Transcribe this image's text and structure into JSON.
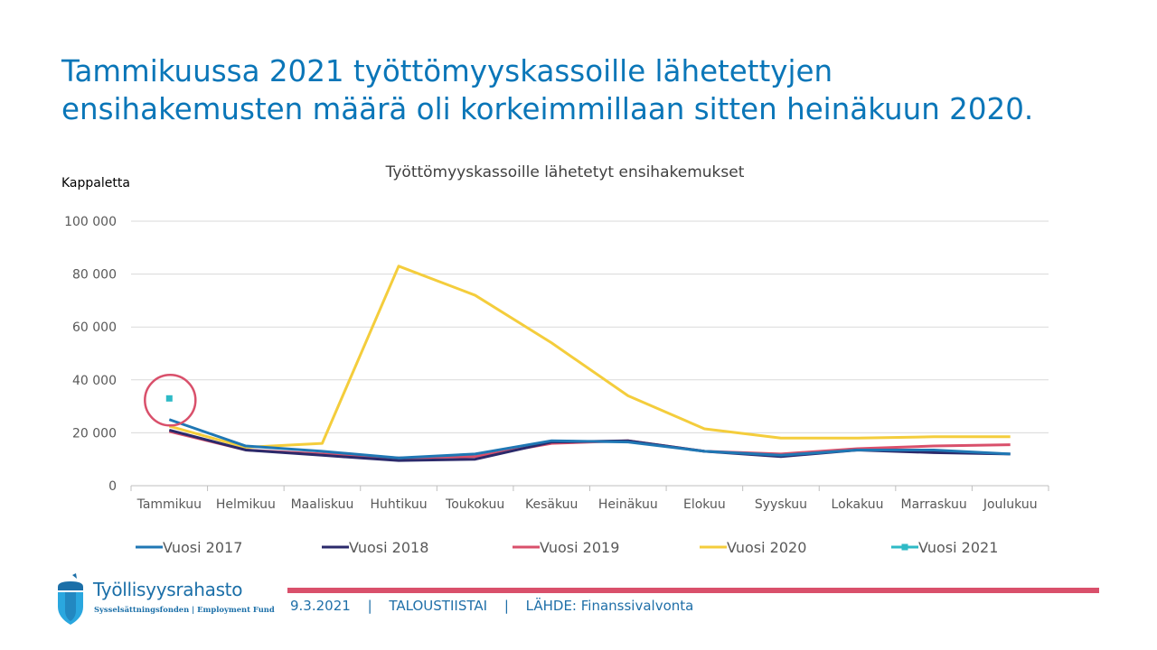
{
  "title": {
    "line1": "Tammikuussa 2021 työttömyyskassoille lähetettyjen",
    "line2": "ensihakemusten määrä oli korkeimmillaan sitten heinäkuun 2020."
  },
  "chart_data": {
    "type": "line",
    "title": "Työttömyyskassoille lähetetyt ensihakemukset",
    "ylabel": "Kappaletta",
    "xlabel": "",
    "categories": [
      "Tammikuu",
      "Helmikuu",
      "Maaliskuu",
      "Huhtikuu",
      "Toukokuu",
      "Kesäkuu",
      "Heinäkuu",
      "Elokuu",
      "Syyskuu",
      "Lokakuu",
      "Marraskuu",
      "Joulukuu"
    ],
    "ylim": [
      0,
      100000
    ],
    "yticks": [
      0,
      20000,
      40000,
      60000,
      80000,
      100000
    ],
    "ytick_labels": [
      "0",
      "20 000",
      "40 000",
      "60 000",
      "80 000",
      "100 000"
    ],
    "grid": true,
    "legend": "bottom",
    "series": [
      {
        "name": "Vuosi 2017",
        "color": "#1f77b4",
        "values": [
          25000,
          15000,
          13000,
          10500,
          12000,
          17000,
          16500,
          13000,
          11500,
          13500,
          13500,
          12000
        ]
      },
      {
        "name": "Vuosi 2018",
        "color": "#2b2a6b",
        "values": [
          21000,
          13500,
          11500,
          9500,
          10000,
          16500,
          17000,
          13000,
          11000,
          13500,
          12500,
          12000
        ]
      },
      {
        "name": "Vuosi 2019",
        "color": "#d9506b",
        "values": [
          20500,
          13500,
          12000,
          10500,
          11000,
          16000,
          17000,
          13000,
          12000,
          14000,
          15000,
          15500
        ]
      },
      {
        "name": "Vuosi 2020",
        "color": "#f4cd3c",
        "values": [
          22500,
          14500,
          16000,
          83000,
          72000,
          54000,
          34000,
          21500,
          18000,
          18000,
          18500,
          18500
        ]
      },
      {
        "name": "Vuosi 2021",
        "color": "#2ebac6",
        "marker": "square",
        "values": [
          33000,
          null,
          null,
          null,
          null,
          null,
          null,
          null,
          null,
          null,
          null,
          null
        ]
      }
    ],
    "annotation": {
      "type": "circle",
      "category": "Tammikuu",
      "color": "#d9506b"
    }
  },
  "footer": {
    "date": "9.3.2021",
    "sep1": "|",
    "event": "TALOUSTIISTAI",
    "sep2": "|",
    "source": "LÄHDE: Finanssivalvonta"
  },
  "logo": {
    "name": "Työllisyysrahasto",
    "subtitle": "Sysselsättningsfonden | Employment Fund",
    "colors": {
      "primary": "#1b6fa8",
      "light": "#2aa7df"
    }
  }
}
